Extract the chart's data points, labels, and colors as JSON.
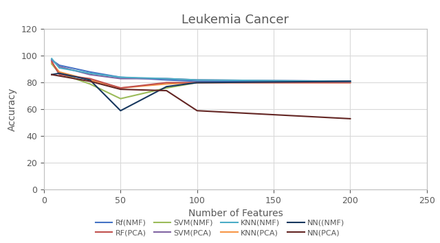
{
  "title": "Leukemia Cancer",
  "xlabel": "Number of Features",
  "ylabel": "Accuracy",
  "xlim": [
    0,
    250
  ],
  "ylim": [
    0,
    120
  ],
  "xticks": [
    0,
    50,
    100,
    150,
    200,
    250
  ],
  "yticks": [
    0,
    20,
    40,
    60,
    80,
    100,
    120
  ],
  "x_values": [
    5,
    10,
    30,
    50,
    80,
    100,
    200
  ],
  "series": {
    "Rf(NMF)": {
      "color": "#4472C4",
      "values": [
        97,
        93,
        88,
        84,
        82,
        81,
        81
      ],
      "linewidth": 1.5,
      "zorder": 3
    },
    "RF(PCA)": {
      "color": "#C0504D",
      "values": [
        96,
        86,
        83,
        76,
        80,
        80,
        80
      ],
      "linewidth": 1.5,
      "zorder": 3
    },
    "SVM(NMF)": {
      "color": "#9BBB59",
      "values": [
        94,
        87,
        79,
        68,
        76,
        80,
        81
      ],
      "linewidth": 1.5,
      "zorder": 2
    },
    "SVM(PCA)": {
      "color": "#8064A2",
      "values": [
        97,
        92,
        86,
        83,
        83,
        82,
        81
      ],
      "linewidth": 1.5,
      "zorder": 3
    },
    "KNN(NMF)": {
      "color": "#4BACC6",
      "values": [
        98,
        91,
        87,
        84,
        83,
        82,
        81
      ],
      "linewidth": 1.5,
      "zorder": 3
    },
    "KNN(PCA)": {
      "color": "#F79646",
      "values": [
        95,
        88,
        82,
        76,
        79,
        80,
        80
      ],
      "linewidth": 1.5,
      "zorder": 2
    },
    "NN((NMF)": {
      "color": "#17375E",
      "values": [
        86,
        87,
        82,
        59,
        77,
        80,
        81
      ],
      "linewidth": 1.5,
      "zorder": 4
    },
    "NN(PCA)": {
      "color": "#632523",
      "values": [
        86,
        85,
        81,
        75,
        74,
        59,
        53
      ],
      "linewidth": 1.5,
      "zorder": 4
    }
  },
  "title_color": "#595959",
  "title_fontsize": 13,
  "axis_label_color": "#595959",
  "axis_label_fontsize": 10,
  "tick_label_color": "#595959",
  "tick_labelsize": 9,
  "grid_color": "#D9D9D9",
  "background_color": "#FFFFFF",
  "legend_fontsize": 8,
  "legend_row1": [
    "Rf(NMF)",
    "RF(PCA)",
    "SVM(NMF)",
    "SVM(PCA)"
  ],
  "legend_row2": [
    "KNN(NMF)",
    "KNN(PCA)",
    "NN((NMF)",
    "NN(PCA)"
  ]
}
